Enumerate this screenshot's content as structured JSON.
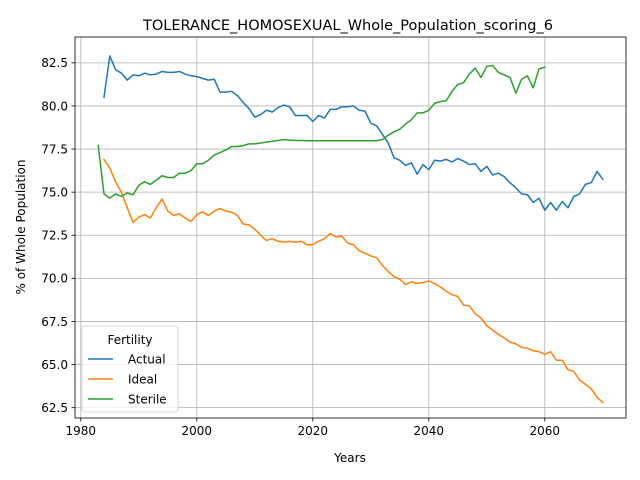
{
  "chart_data": {
    "type": "line",
    "title": "TOLERANCE_HOMOSEXUAL_Whole_Population_scoring_6",
    "xlabel": "Years",
    "ylabel": "% of Whole Population",
    "xlim": [
      1979,
      2074
    ],
    "ylim": [
      61.9,
      84.0
    ],
    "xticks": [
      1980,
      2000,
      2020,
      2040,
      2060
    ],
    "yticks": [
      62.5,
      65.0,
      67.5,
      70.0,
      72.5,
      75.0,
      77.5,
      80.0,
      82.5
    ],
    "grid": true,
    "legend": {
      "title": "Fertility",
      "position": "lower-left"
    },
    "series": [
      {
        "name": "Actual",
        "color": "#1f77b4",
        "points": [
          [
            1984,
            80.5
          ],
          [
            1985,
            82.9
          ],
          [
            1986,
            82.1
          ],
          [
            1987,
            81.9
          ],
          [
            1988,
            81.5
          ],
          [
            1989,
            81.8
          ],
          [
            1990,
            81.75
          ],
          [
            1991,
            81.9
          ],
          [
            1992,
            81.8
          ],
          [
            1993,
            81.85
          ],
          [
            1994,
            82.0
          ],
          [
            1995,
            81.95
          ],
          [
            1996,
            81.95
          ],
          [
            1997,
            82.0
          ],
          [
            1998,
            81.85
          ],
          [
            1999,
            81.75
          ],
          [
            2000,
            81.7
          ],
          [
            2001,
            81.6
          ],
          [
            2002,
            81.5
          ],
          [
            2003,
            81.55
          ],
          [
            2004,
            80.8
          ],
          [
            2005,
            80.8
          ],
          [
            2006,
            80.85
          ],
          [
            2007,
            80.6
          ],
          [
            2008,
            80.2
          ],
          [
            2009,
            79.85
          ],
          [
            2010,
            79.35
          ],
          [
            2011,
            79.5
          ],
          [
            2012,
            79.75
          ],
          [
            2013,
            79.65
          ],
          [
            2014,
            79.9
          ],
          [
            2015,
            80.05
          ],
          [
            2016,
            79.95
          ],
          [
            2017,
            79.45
          ],
          [
            2018,
            79.45
          ],
          [
            2019,
            79.45
          ],
          [
            2020,
            79.1
          ],
          [
            2021,
            79.45
          ],
          [
            2022,
            79.3
          ],
          [
            2023,
            79.8
          ],
          [
            2024,
            79.8
          ],
          [
            2025,
            79.95
          ],
          [
            2026,
            79.95
          ],
          [
            2027,
            80.0
          ],
          [
            2028,
            79.75
          ],
          [
            2029,
            79.7
          ],
          [
            2030,
            79.0
          ],
          [
            2031,
            78.85
          ],
          [
            2032,
            78.35
          ],
          [
            2033,
            77.85
          ],
          [
            2034,
            77.0
          ],
          [
            2035,
            76.85
          ],
          [
            2036,
            76.55
          ],
          [
            2037,
            76.7
          ],
          [
            2038,
            76.05
          ],
          [
            2039,
            76.6
          ],
          [
            2040,
            76.3
          ],
          [
            2041,
            76.85
          ],
          [
            2042,
            76.8
          ],
          [
            2043,
            76.9
          ],
          [
            2044,
            76.75
          ],
          [
            2045,
            76.95
          ],
          [
            2046,
            76.8
          ],
          [
            2047,
            76.6
          ],
          [
            2048,
            76.65
          ],
          [
            2049,
            76.2
          ],
          [
            2050,
            76.5
          ],
          [
            2051,
            76.0
          ],
          [
            2052,
            76.1
          ],
          [
            2053,
            75.9
          ],
          [
            2054,
            75.55
          ],
          [
            2055,
            75.25
          ],
          [
            2056,
            74.9
          ],
          [
            2057,
            74.85
          ],
          [
            2058,
            74.4
          ],
          [
            2059,
            74.65
          ],
          [
            2060,
            73.95
          ],
          [
            2061,
            74.4
          ],
          [
            2062,
            73.95
          ],
          [
            2063,
            74.45
          ],
          [
            2064,
            74.1
          ],
          [
            2065,
            74.75
          ],
          [
            2066,
            74.9
          ],
          [
            2067,
            75.45
          ],
          [
            2068,
            75.55
          ],
          [
            2069,
            76.2
          ],
          [
            2070,
            75.75
          ]
        ]
      },
      {
        "name": "Ideal",
        "color": "#ff7f0e",
        "points": [
          [
            1984,
            76.9
          ],
          [
            1985,
            76.4
          ],
          [
            1986,
            75.6
          ],
          [
            1987,
            75.0
          ],
          [
            1988,
            74.1
          ],
          [
            1989,
            73.25
          ],
          [
            1990,
            73.55
          ],
          [
            1991,
            73.7
          ],
          [
            1992,
            73.5
          ],
          [
            1993,
            74.1
          ],
          [
            1994,
            74.6
          ],
          [
            1995,
            73.9
          ],
          [
            1996,
            73.65
          ],
          [
            1997,
            73.75
          ],
          [
            1998,
            73.5
          ],
          [
            1999,
            73.3
          ],
          [
            2000,
            73.7
          ],
          [
            2001,
            73.85
          ],
          [
            2002,
            73.65
          ],
          [
            2003,
            73.9
          ],
          [
            2004,
            74.05
          ],
          [
            2005,
            73.9
          ],
          [
            2006,
            73.85
          ],
          [
            2007,
            73.65
          ],
          [
            2008,
            73.15
          ],
          [
            2009,
            73.1
          ],
          [
            2010,
            72.85
          ],
          [
            2011,
            72.5
          ],
          [
            2012,
            72.2
          ],
          [
            2013,
            72.3
          ],
          [
            2014,
            72.15
          ],
          [
            2015,
            72.1
          ],
          [
            2016,
            72.15
          ],
          [
            2017,
            72.1
          ],
          [
            2018,
            72.15
          ],
          [
            2019,
            71.95
          ],
          [
            2020,
            71.95
          ],
          [
            2021,
            72.15
          ],
          [
            2022,
            72.3
          ],
          [
            2023,
            72.6
          ],
          [
            2024,
            72.4
          ],
          [
            2025,
            72.45
          ],
          [
            2026,
            72.05
          ],
          [
            2027,
            71.95
          ],
          [
            2028,
            71.6
          ],
          [
            2029,
            71.45
          ],
          [
            2030,
            71.3
          ],
          [
            2031,
            71.2
          ],
          [
            2032,
            70.75
          ],
          [
            2033,
            70.4
          ],
          [
            2034,
            70.1
          ],
          [
            2035,
            69.95
          ],
          [
            2036,
            69.65
          ],
          [
            2037,
            69.8
          ],
          [
            2038,
            69.7
          ],
          [
            2039,
            69.75
          ],
          [
            2040,
            69.85
          ],
          [
            2041,
            69.7
          ],
          [
            2042,
            69.5
          ],
          [
            2043,
            69.25
          ],
          [
            2044,
            69.05
          ],
          [
            2045,
            68.95
          ],
          [
            2046,
            68.45
          ],
          [
            2047,
            68.4
          ],
          [
            2048,
            67.95
          ],
          [
            2049,
            67.7
          ],
          [
            2050,
            67.25
          ],
          [
            2051,
            67.0
          ],
          [
            2052,
            66.75
          ],
          [
            2053,
            66.55
          ],
          [
            2054,
            66.3
          ],
          [
            2055,
            66.2
          ],
          [
            2056,
            66.0
          ],
          [
            2057,
            65.95
          ],
          [
            2058,
            65.8
          ],
          [
            2059,
            65.75
          ],
          [
            2060,
            65.6
          ],
          [
            2061,
            65.75
          ],
          [
            2062,
            65.25
          ],
          [
            2063,
            65.25
          ],
          [
            2064,
            64.7
          ],
          [
            2065,
            64.6
          ],
          [
            2066,
            64.1
          ],
          [
            2067,
            63.85
          ],
          [
            2068,
            63.6
          ],
          [
            2069,
            63.1
          ],
          [
            2070,
            62.8
          ]
        ]
      },
      {
        "name": "Sterile",
        "color": "#2ca02c",
        "points": [
          [
            1983,
            77.7
          ],
          [
            1984,
            74.9
          ],
          [
            1985,
            74.65
          ],
          [
            1986,
            74.9
          ],
          [
            1987,
            74.75
          ],
          [
            1988,
            74.95
          ],
          [
            1989,
            74.85
          ],
          [
            1990,
            75.4
          ],
          [
            1991,
            75.6
          ],
          [
            1992,
            75.45
          ],
          [
            1993,
            75.7
          ],
          [
            1994,
            75.95
          ],
          [
            1995,
            75.85
          ],
          [
            1996,
            75.85
          ],
          [
            1997,
            76.1
          ],
          [
            1998,
            76.1
          ],
          [
            1999,
            76.25
          ],
          [
            2000,
            76.65
          ],
          [
            2001,
            76.65
          ],
          [
            2002,
            76.85
          ],
          [
            2003,
            77.15
          ],
          [
            2004,
            77.3
          ],
          [
            2005,
            77.45
          ],
          [
            2006,
            77.65
          ],
          [
            2007,
            77.65
          ],
          [
            2008,
            77.7
          ],
          [
            2009,
            77.8
          ],
          [
            2010,
            77.8
          ],
          [
            2011,
            77.85
          ],
          [
            2012,
            77.9
          ],
          [
            2013,
            77.95
          ],
          [
            2014,
            78.0
          ],
          [
            2015,
            78.05
          ],
          [
            2016,
            78.02
          ],
          [
            2017,
            78.0
          ],
          [
            2018,
            78.0
          ],
          [
            2019,
            77.98
          ],
          [
            2020,
            77.98
          ],
          [
            2021,
            77.98
          ],
          [
            2022,
            77.98
          ],
          [
            2023,
            77.98
          ],
          [
            2024,
            77.98
          ],
          [
            2025,
            77.98
          ],
          [
            2026,
            77.98
          ],
          [
            2027,
            77.98
          ],
          [
            2028,
            77.98
          ],
          [
            2029,
            77.98
          ],
          [
            2030,
            77.98
          ],
          [
            2031,
            77.98
          ],
          [
            2032,
            78.05
          ],
          [
            2033,
            78.3
          ],
          [
            2034,
            78.5
          ],
          [
            2035,
            78.65
          ],
          [
            2036,
            78.95
          ],
          [
            2037,
            79.2
          ],
          [
            2038,
            79.6
          ],
          [
            2039,
            79.6
          ],
          [
            2040,
            79.75
          ],
          [
            2041,
            80.15
          ],
          [
            2042,
            80.25
          ],
          [
            2043,
            80.3
          ],
          [
            2044,
            80.85
          ],
          [
            2045,
            81.25
          ],
          [
            2046,
            81.35
          ],
          [
            2047,
            81.85
          ],
          [
            2048,
            82.2
          ],
          [
            2049,
            81.65
          ],
          [
            2050,
            82.3
          ],
          [
            2051,
            82.35
          ],
          [
            2052,
            81.95
          ],
          [
            2053,
            81.8
          ],
          [
            2054,
            81.65
          ],
          [
            2055,
            80.75
          ],
          [
            2056,
            81.55
          ],
          [
            2057,
            81.75
          ],
          [
            2058,
            81.05
          ],
          [
            2059,
            82.15
          ],
          [
            2060,
            82.25
          ]
        ]
      }
    ]
  }
}
